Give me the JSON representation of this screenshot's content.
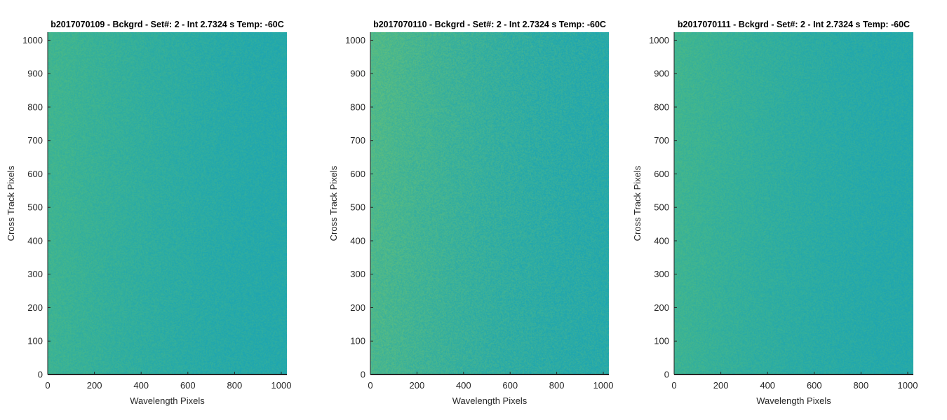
{
  "chart_data": [
    {
      "type": "heatmap",
      "title": "b2017070109 - Bckgrd - Set#: 2 - Int 2.7324 s Temp: -60C",
      "xlabel": "Wavelength Pixels",
      "ylabel": "Cross Track Pixels",
      "xlim": [
        0,
        1024
      ],
      "ylim": [
        0,
        1024
      ],
      "xticks": [
        0,
        200,
        400,
        600,
        800,
        1000
      ],
      "yticks": [
        0,
        100,
        200,
        300,
        400,
        500,
        600,
        700,
        800,
        900,
        1000
      ],
      "colormap": "parula",
      "colors": {
        "low": "#1fa6b0",
        "high": "#4ab987"
      },
      "description_noise": "dense per-pixel noise, warmer green toward low wavelength pixels"
    },
    {
      "type": "heatmap",
      "title": "b2017070110 - Bckgrd - Set#: 2 - Int 2.7324 s Temp: -60C",
      "xlabel": "Wavelength Pixels",
      "ylabel": "Cross Track Pixels",
      "xlim": [
        0,
        1024
      ],
      "ylim": [
        0,
        1024
      ],
      "xticks": [
        0,
        200,
        400,
        600,
        800,
        1000
      ],
      "yticks": [
        0,
        100,
        200,
        300,
        400,
        500,
        600,
        700,
        800,
        900,
        1000
      ],
      "colormap": "parula",
      "colors": {
        "low": "#1fa6b0",
        "high": "#5ebe7e"
      }
    },
    {
      "type": "heatmap",
      "title": "b2017070111 - Bckgrd - Set#: 2 - Int 2.7324 s Temp: -60C",
      "xlabel": "Wavelength Pixels",
      "ylabel": "Cross Track Pixels",
      "xlim": [
        0,
        1024
      ],
      "ylim": [
        0,
        1024
      ],
      "xticks": [
        0,
        200,
        400,
        600,
        800,
        1000
      ],
      "yticks": [
        0,
        100,
        200,
        300,
        400,
        500,
        600,
        700,
        800,
        900,
        1000
      ],
      "colormap": "parula",
      "colors": {
        "low": "#1fa6b0",
        "high": "#4ab987"
      }
    }
  ]
}
